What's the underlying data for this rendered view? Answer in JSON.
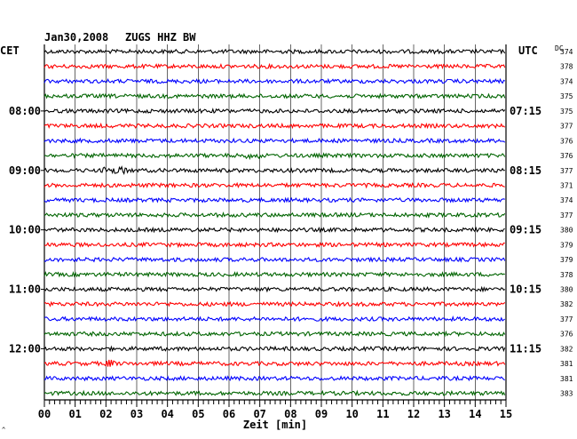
{
  "header": {
    "date": "Jan30,2008",
    "station": "ZUGS HHZ BW",
    "left_zone": "CET",
    "right_zone": "UTC",
    "dc_label": "DC"
  },
  "chart_data": {
    "type": "line",
    "title": "Jan30,2008   ZUGS HHZ BW",
    "xlabel": "Zeit [min]",
    "xlim": [
      0,
      15
    ],
    "x_ticks": [
      "00",
      "01",
      "02",
      "03",
      "04",
      "05",
      "06",
      "07",
      "08",
      "09",
      "10",
      "11",
      "12",
      "13",
      "14",
      "15"
    ],
    "grid": true,
    "trace_colors": [
      "#000000",
      "#ff0000",
      "#0000ff",
      "#006400"
    ],
    "left_time_labels": [
      "08:00",
      "09:00",
      "10:00",
      "11:00",
      "12:00"
    ],
    "right_time_labels": [
      "07:15",
      "08:15",
      "09:15",
      "10:15",
      "11:15"
    ],
    "dc_offsets": [
      374,
      378,
      374,
      375,
      375,
      377,
      376,
      376,
      377,
      371,
      374,
      377,
      380,
      379,
      379,
      378,
      380,
      382,
      377,
      376,
      382,
      381,
      381,
      383
    ]
  }
}
